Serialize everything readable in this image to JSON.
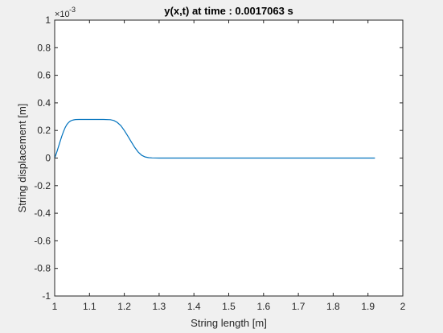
{
  "chart_data": {
    "type": "line",
    "title": "y(x,t) at time : 0.0017063 s",
    "xlabel": "String length [m]",
    "ylabel": "String displacement [m]",
    "y_exponent_label": "×10",
    "y_exponent_power": "-3",
    "xlim": [
      1,
      2
    ],
    "ylim": [
      -1,
      1
    ],
    "y_scale_factor": 0.001,
    "grid": false,
    "x_ticks": [
      1,
      1.1,
      1.2,
      1.3,
      1.4,
      1.5,
      1.6,
      1.7,
      1.8,
      1.9,
      2
    ],
    "x_tick_labels": [
      "1",
      "1.1",
      "1.2",
      "1.3",
      "1.4",
      "1.5",
      "1.6",
      "1.7",
      "1.8",
      "1.9",
      "2"
    ],
    "y_ticks": [
      -1,
      -0.8,
      -0.6,
      -0.4,
      -0.2,
      0,
      0.2,
      0.4,
      0.6,
      0.8,
      1
    ],
    "y_tick_labels": [
      "-1",
      "-0.8",
      "-0.6",
      "-0.4",
      "-0.2",
      "0",
      "0.2",
      "0.4",
      "0.6",
      "0.8",
      "1"
    ],
    "line_color": "#0072bd",
    "series": [
      {
        "x": [
          1.0,
          1.005,
          1.01,
          1.015,
          1.02,
          1.025,
          1.03,
          1.035,
          1.04,
          1.045,
          1.05,
          1.055,
          1.06,
          1.07,
          1.08,
          1.09,
          1.1,
          1.12,
          1.14,
          1.16,
          1.17,
          1.18,
          1.19,
          1.2,
          1.21,
          1.22,
          1.23,
          1.24,
          1.25,
          1.26,
          1.27,
          1.28,
          1.3,
          1.4,
          1.5,
          1.6,
          1.7,
          1.8,
          1.9,
          1.92
        ],
        "y": [
          0.0,
          0.035,
          0.075,
          0.115,
          0.155,
          0.19,
          0.22,
          0.243,
          0.258,
          0.268,
          0.274,
          0.277,
          0.279,
          0.28,
          0.28,
          0.28,
          0.28,
          0.28,
          0.28,
          0.278,
          0.272,
          0.258,
          0.235,
          0.2,
          0.16,
          0.118,
          0.077,
          0.043,
          0.02,
          0.008,
          0.003,
          0.001,
          0.0,
          0.0,
          0.0,
          0.0,
          0.0,
          0.0,
          0.0,
          0.0
        ]
      }
    ]
  }
}
